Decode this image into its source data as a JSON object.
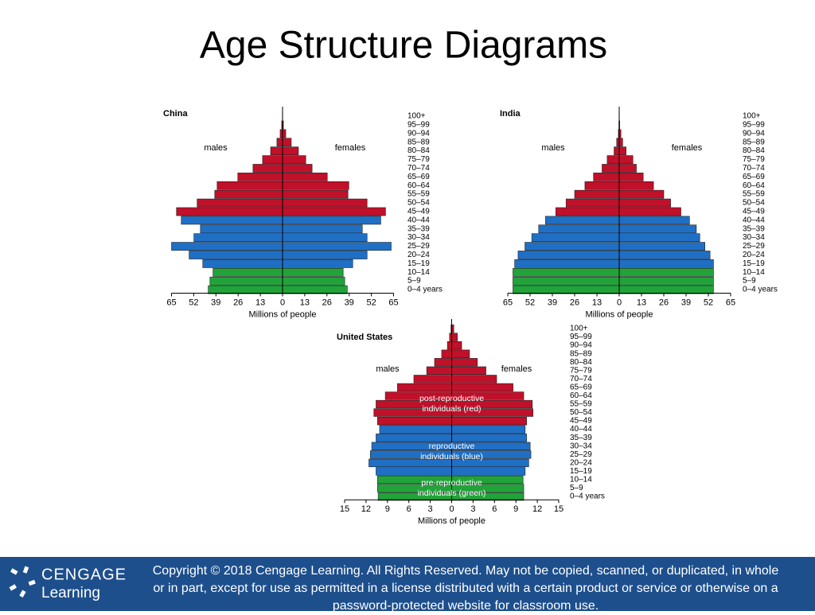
{
  "title": "Age Structure Diagrams",
  "chart_data": [
    {
      "type": "pyramid",
      "title": "China",
      "categories": [
        "0–4 years",
        "5–9",
        "10–14",
        "15–19",
        "20–24",
        "25–29",
        "30–34",
        "35–39",
        "40–44",
        "45–49",
        "50–54",
        "55–59",
        "60–64",
        "65–69",
        "70–74",
        "75–79",
        "80–84",
        "85–89",
        "90–94",
        "95–99",
        "100+"
      ],
      "series": [
        {
          "name": "males",
          "values": [
            43.5,
            42.5,
            40.7,
            46.7,
            54.7,
            65,
            51.9,
            48.1,
            59.3,
            62.1,
            50,
            39.7,
            38.3,
            26.2,
            17.3,
            11.7,
            7,
            3.3,
            1.4,
            0.5,
            0.1
          ]
        },
        {
          "name": "females",
          "values": [
            37.9,
            36.4,
            35.5,
            41.1,
            49.5,
            63.6,
            49.5,
            46.7,
            57.5,
            60.3,
            49.5,
            38.3,
            38.8,
            26.2,
            17.3,
            13.6,
            9.3,
            5.1,
            1.9,
            0.5,
            0.1
          ]
        }
      ],
      "bar_colors": [
        "#21a33a",
        "#21a33a",
        "#21a33a",
        "#1f6fc5",
        "#1f6fc5",
        "#1f6fc5",
        "#1f6fc5",
        "#1f6fc5",
        "#1f6fc5",
        "#c0102a",
        "#c0102a",
        "#c0102a",
        "#c0102a",
        "#c0102a",
        "#c0102a",
        "#c0102a",
        "#c0102a",
        "#c0102a",
        "#c0102a",
        "#c0102a",
        "#c0102a"
      ],
      "xlim": [
        0,
        65
      ],
      "xticks": [
        0,
        13,
        26,
        39,
        52,
        65
      ],
      "xlabel": "Millions of people"
    },
    {
      "type": "pyramid",
      "title": "India",
      "categories": [
        "0–4 years",
        "5–9",
        "10–14",
        "15–19",
        "20–24",
        "25–29",
        "30–34",
        "35–39",
        "40–44",
        "45–49",
        "50–54",
        "55–59",
        "60–64",
        "65–69",
        "70–74",
        "75–79",
        "80–84",
        "85–89",
        "90–94",
        "95–99",
        "100+"
      ],
      "series": [
        {
          "name": "males",
          "values": [
            62,
            62,
            62,
            61,
            59,
            55,
            51,
            47,
            43,
            37,
            31,
            26,
            20,
            15,
            10,
            7,
            3,
            1.5,
            0.5,
            0.2,
            0.1
          ]
        },
        {
          "name": "females",
          "values": [
            55,
            55,
            55,
            55,
            53,
            50,
            47,
            45,
            41,
            36,
            30,
            26,
            20,
            14,
            10,
            8,
            4,
            2,
            1,
            0.3,
            0.1
          ]
        }
      ],
      "bar_colors": [
        "#21a33a",
        "#21a33a",
        "#21a33a",
        "#1f6fc5",
        "#1f6fc5",
        "#1f6fc5",
        "#1f6fc5",
        "#1f6fc5",
        "#1f6fc5",
        "#c0102a",
        "#c0102a",
        "#c0102a",
        "#c0102a",
        "#c0102a",
        "#c0102a",
        "#c0102a",
        "#c0102a",
        "#c0102a",
        "#c0102a",
        "#c0102a",
        "#c0102a"
      ],
      "xlim": [
        0,
        65
      ],
      "xticks": [
        0,
        13,
        26,
        39,
        52,
        65
      ],
      "xlabel": "Millions of people"
    },
    {
      "type": "pyramid",
      "title": "United States",
      "categories": [
        "0–4 years",
        "5–9",
        "10–14",
        "15–19",
        "20–24",
        "25–29",
        "30–34",
        "35–39",
        "40–44",
        "45–49",
        "50–54",
        "55–59",
        "60–64",
        "65–69",
        "70–74",
        "75–79",
        "80–84",
        "85–89",
        "90–94",
        "95–99",
        "100+"
      ],
      "series": [
        {
          "name": "males",
          "values": [
            10.3,
            10.4,
            10.4,
            10.6,
            11.6,
            11.4,
            11.2,
            10.6,
            10.1,
            10.4,
            10.9,
            10.6,
            9.3,
            7.6,
            5.3,
            3.5,
            2.4,
            1.4,
            0.6,
            0.3,
            0.1
          ]
        },
        {
          "name": "females",
          "values": [
            10.1,
            10.1,
            10,
            10.3,
            10.8,
            11.1,
            11,
            10.5,
            10.3,
            10.5,
            11.4,
            11.3,
            10.1,
            8.6,
            6.3,
            4.8,
            3.6,
            2.5,
            1.4,
            0.8,
            0.3
          ]
        }
      ],
      "bar_colors": [
        "#21a33a",
        "#21a33a",
        "#21a33a",
        "#1f6fc5",
        "#1f6fc5",
        "#1f6fc5",
        "#1f6fc5",
        "#1f6fc5",
        "#1f6fc5",
        "#c0102a",
        "#c0102a",
        "#c0102a",
        "#c0102a",
        "#c0102a",
        "#c0102a",
        "#c0102a",
        "#c0102a",
        "#c0102a",
        "#c0102a",
        "#c0102a",
        "#c0102a"
      ],
      "xlim": [
        0,
        15
      ],
      "xticks": [
        0,
        3,
        6,
        9,
        12,
        15
      ],
      "xlabel": "Millions of people",
      "annotations": [
        [
          "pre-reproductive",
          "individuals (green)"
        ],
        [
          "reproductive",
          "individuals (blue)"
        ],
        [
          "post-reproductive",
          "individuals (red)"
        ]
      ]
    }
  ],
  "footer": {
    "logo": [
      "CENGAGE",
      "Learning"
    ],
    "copyright": "Copyright © 2018 Cengage Learning. All Rights Reserved. May not be copied, scanned, or duplicated, in whole or in part, except for use as permitted in a license distributed with a certain product or service or otherwise on a password-protected website for classroom use."
  }
}
